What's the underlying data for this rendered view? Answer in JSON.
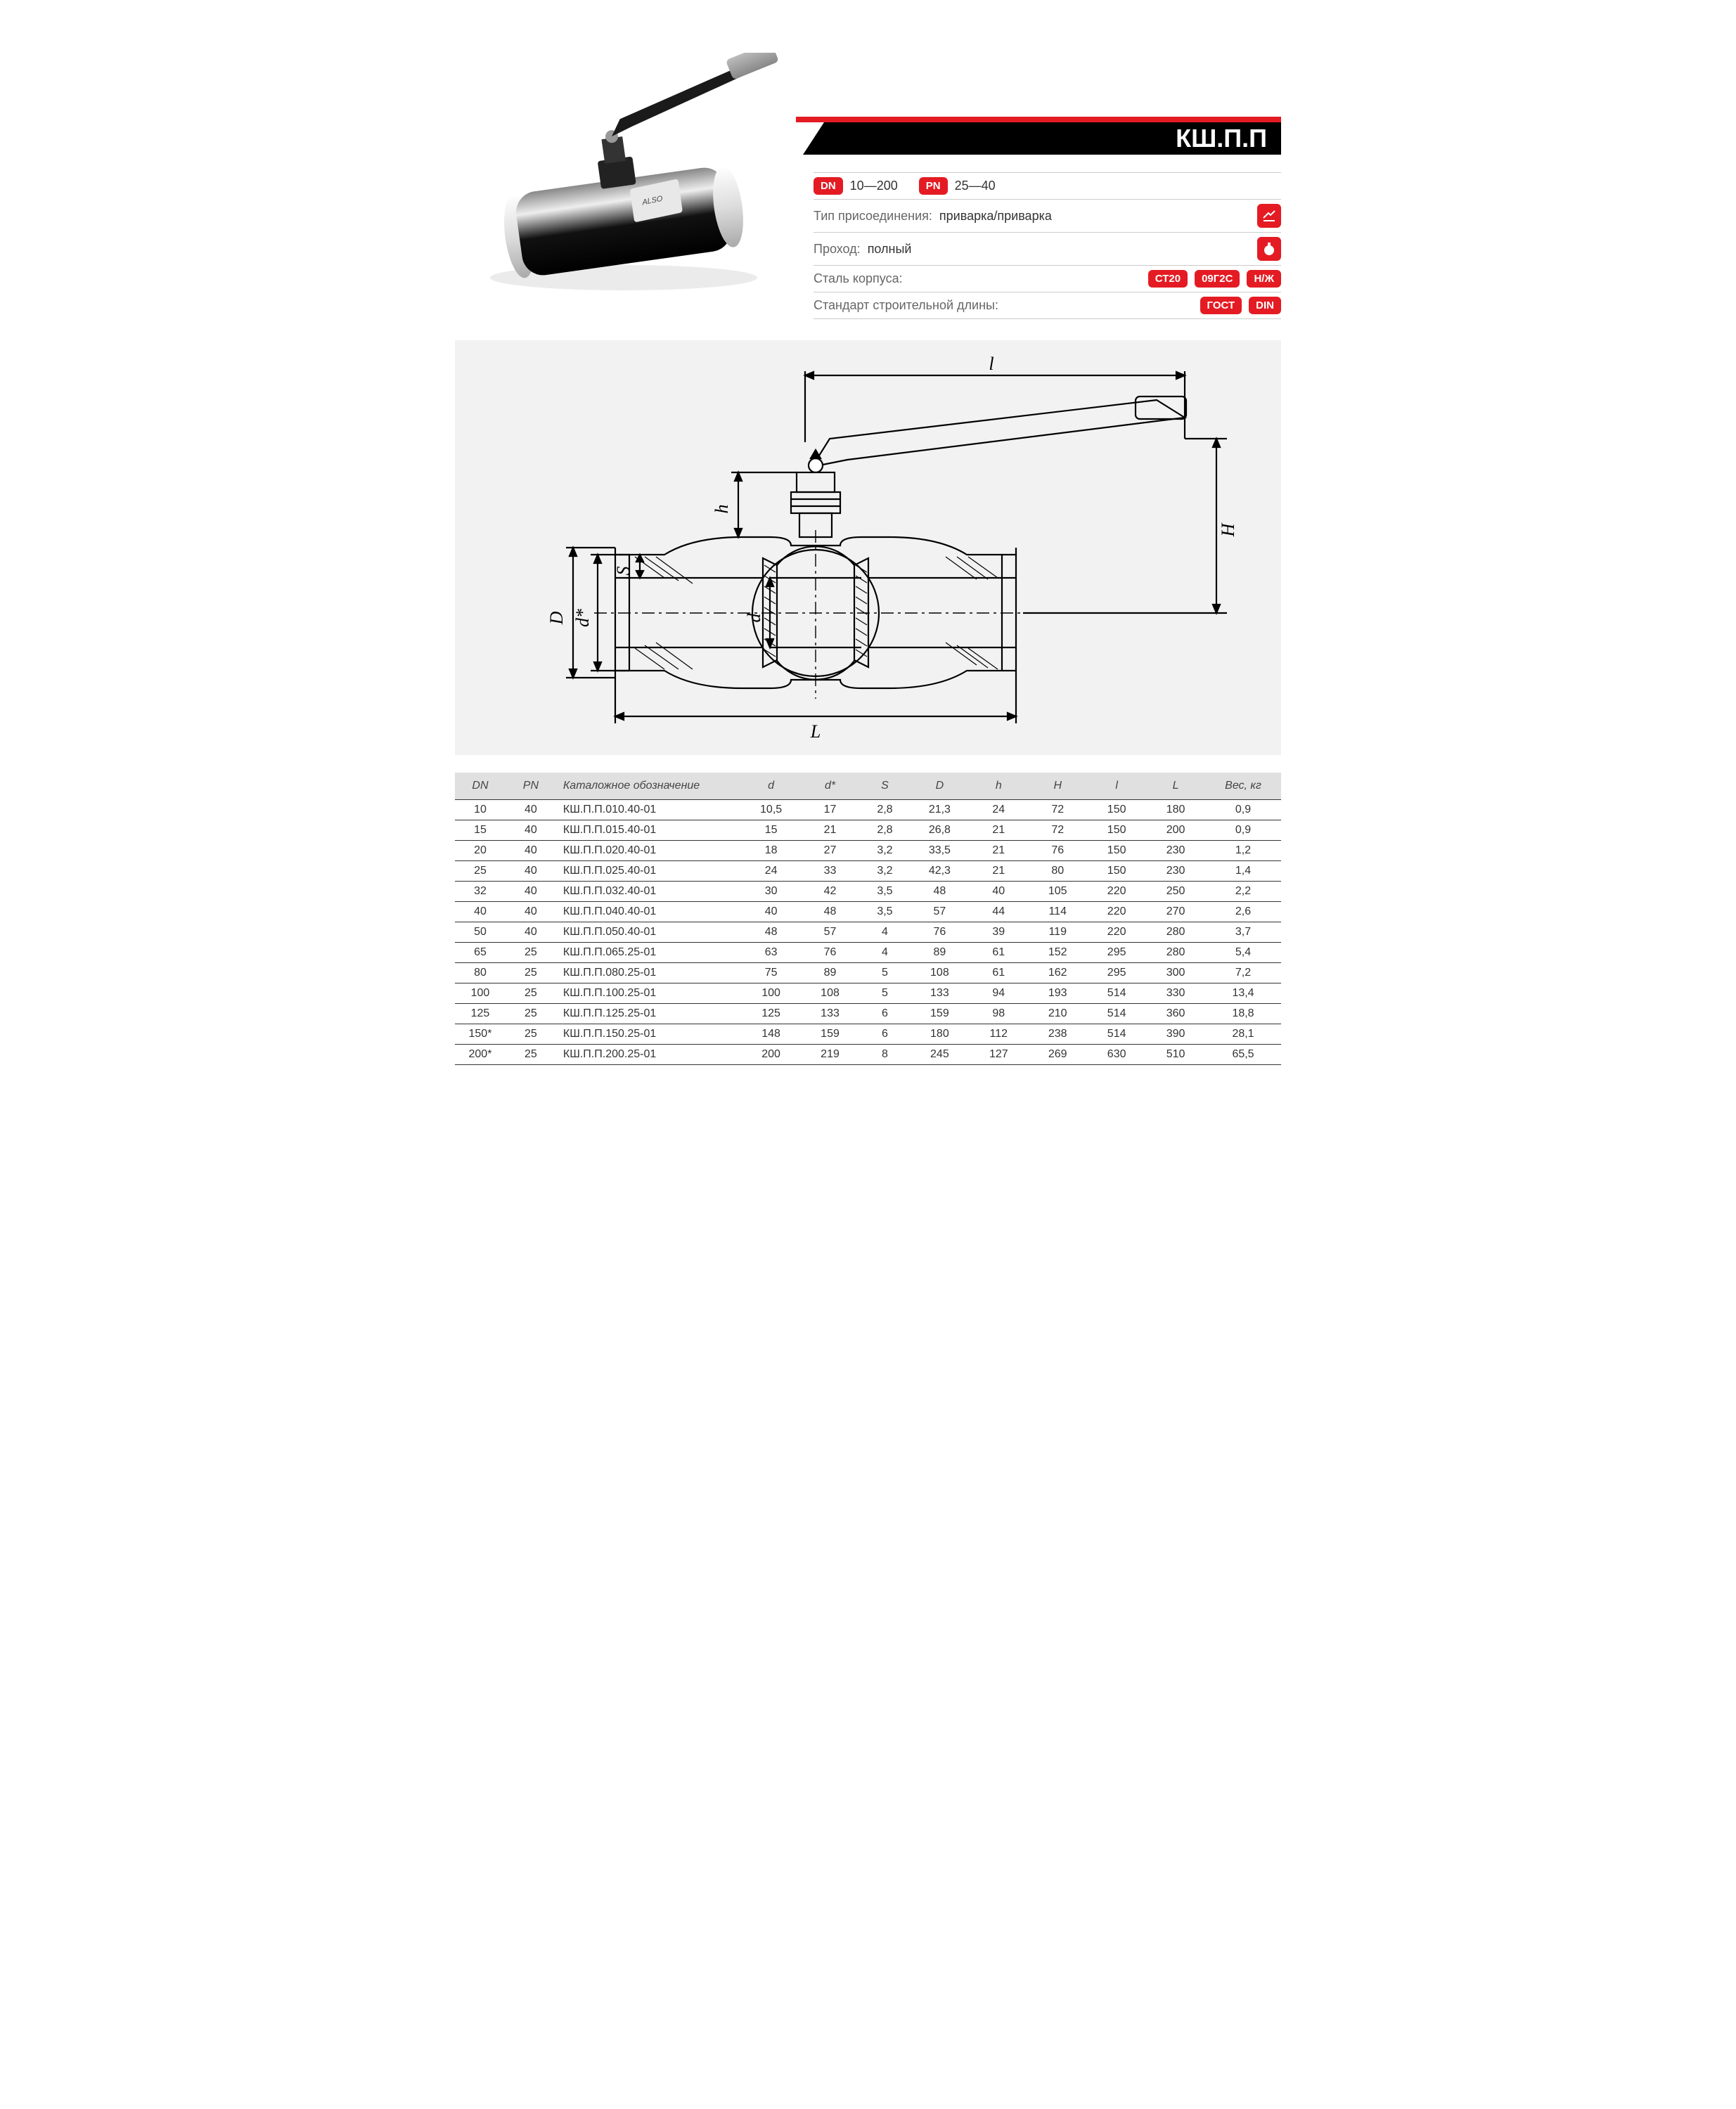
{
  "colors": {
    "accent_red": "#e41b23",
    "black": "#000000",
    "grey_bg": "#f2f2f2",
    "header_grey": "#e0e0e0",
    "text_body": "#333333",
    "text_muted": "#666666",
    "border": "#cccccc"
  },
  "header": {
    "model": "КШ.П.П"
  },
  "specs": {
    "dn_label": "DN",
    "dn_value": "10—200",
    "pn_label": "PN",
    "pn_value": "25—40",
    "connection_label": "Тип присоединения:",
    "connection_value": "приварка/приварка",
    "bore_label": "Проход:",
    "bore_value": "полный",
    "body_steel_label": "Сталь корпуса:",
    "body_steel_badges": [
      "СТ20",
      "09Г2С",
      "Н/Ж"
    ],
    "length_std_label": "Стандарт строительной длины:",
    "length_std_badges": [
      "ГОСТ",
      "DIN"
    ]
  },
  "diagram_labels": {
    "l_small": "l",
    "H": "H",
    "h": "h",
    "D": "D",
    "d_star": "d*",
    "S": "S",
    "d": "d",
    "L": "L"
  },
  "table": {
    "columns": [
      "DN",
      "PN",
      "Каталожное обозначение",
      "d",
      "d*",
      "S",
      "D",
      "h",
      "H",
      "l",
      "L",
      "Вес, кг"
    ],
    "col_widths_pct": [
      6,
      6,
      22,
      7,
      7,
      6,
      7,
      7,
      7,
      7,
      7,
      9
    ],
    "rows": [
      [
        "10",
        "40",
        "КШ.П.П.010.40-01",
        "10,5",
        "17",
        "2,8",
        "21,3",
        "24",
        "72",
        "150",
        "180",
        "0,9"
      ],
      [
        "15",
        "40",
        "КШ.П.П.015.40-01",
        "15",
        "21",
        "2,8",
        "26,8",
        "21",
        "72",
        "150",
        "200",
        "0,9"
      ],
      [
        "20",
        "40",
        "КШ.П.П.020.40-01",
        "18",
        "27",
        "3,2",
        "33,5",
        "21",
        "76",
        "150",
        "230",
        "1,2"
      ],
      [
        "25",
        "40",
        "КШ.П.П.025.40-01",
        "24",
        "33",
        "3,2",
        "42,3",
        "21",
        "80",
        "150",
        "230",
        "1,4"
      ],
      [
        "32",
        "40",
        "КШ.П.П.032.40-01",
        "30",
        "42",
        "3,5",
        "48",
        "40",
        "105",
        "220",
        "250",
        "2,2"
      ],
      [
        "40",
        "40",
        "КШ.П.П.040.40-01",
        "40",
        "48",
        "3,5",
        "57",
        "44",
        "114",
        "220",
        "270",
        "2,6"
      ],
      [
        "50",
        "40",
        "КШ.П.П.050.40-01",
        "48",
        "57",
        "4",
        "76",
        "39",
        "119",
        "220",
        "280",
        "3,7"
      ],
      [
        "65",
        "25",
        "КШ.П.П.065.25-01",
        "63",
        "76",
        "4",
        "89",
        "61",
        "152",
        "295",
        "280",
        "5,4"
      ],
      [
        "80",
        "25",
        "КШ.П.П.080.25-01",
        "75",
        "89",
        "5",
        "108",
        "61",
        "162",
        "295",
        "300",
        "7,2"
      ],
      [
        "100",
        "25",
        "КШ.П.П.100.25-01",
        "100",
        "108",
        "5",
        "133",
        "94",
        "193",
        "514",
        "330",
        "13,4"
      ],
      [
        "125",
        "25",
        "КШ.П.П.125.25-01",
        "125",
        "133",
        "6",
        "159",
        "98",
        "210",
        "514",
        "360",
        "18,8"
      ],
      [
        "150*",
        "25",
        "КШ.П.П.150.25-01",
        "148",
        "159",
        "6",
        "180",
        "112",
        "238",
        "514",
        "390",
        "28,1"
      ],
      [
        "200*",
        "25",
        "КШ.П.П.200.25-01",
        "200",
        "219",
        "8",
        "245",
        "127",
        "269",
        "630",
        "510",
        "65,5"
      ]
    ]
  }
}
